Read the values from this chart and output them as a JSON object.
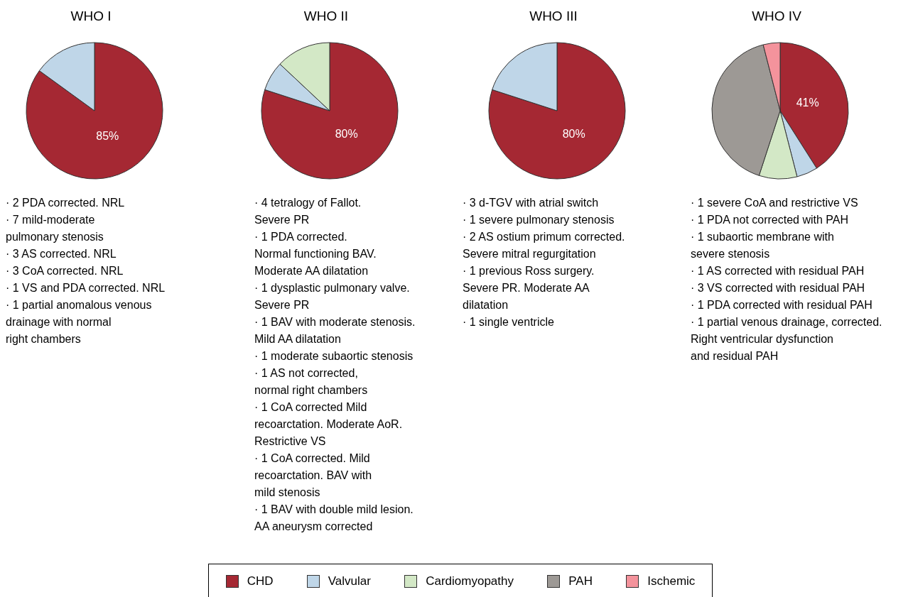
{
  "chart_data": [
    {
      "type": "pie",
      "title": "WHO I",
      "categories": [
        null,
        null
      ],
      "values": [
        85,
        15
      ],
      "colors": [
        "#a52833",
        "#bfd6e8"
      ],
      "value_labels": [
        "85%",
        null
      ],
      "legend": false,
      "annotations": [
        "· 2 PDA corrected. NRL",
        "· 7 mild-moderate",
        "pulmonary stenosis",
        "· 3 AS corrected. NRL",
        "· 3 CoA corrected. NRL",
        "· 1 VS and PDA corrected. NRL",
        "· 1 partial anomalous venous",
        "drainage with normal",
        "right chambers"
      ]
    },
    {
      "type": "pie",
      "title": "WHO II",
      "categories": [
        null,
        null,
        null
      ],
      "values": [
        80,
        7,
        13
      ],
      "colors": [
        "#a52833",
        "#bfd6e8",
        "#d3e8c6"
      ],
      "value_labels": [
        "80%",
        null,
        null
      ],
      "legend": false,
      "annotations": [
        "· 4 tetralogy of Fallot.",
        "Severe PR",
        "· 1 PDA corrected.",
        "Normal functioning BAV.",
        "Moderate AA dilatation",
        "· 1 dysplastic pulmonary valve.",
        "Severe PR",
        "· 1 BAV with moderate stenosis.",
        "Mild AA dilatation",
        "· 1 moderate subaortic stenosis",
        "· 1 AS not corrected,",
        "normal right chambers",
        "· 1 CoA corrected Mild",
        "recoarctation. Moderate AoR.",
        "Restrictive VS",
        "· 1 CoA corrected. Mild",
        "recoarctation. BAV with",
        "mild stenosis",
        "· 1 BAV with double mild lesion.",
        "AA aneurysm corrected"
      ]
    },
    {
      "type": "pie",
      "title": "WHO III",
      "categories": [
        null,
        null
      ],
      "values": [
        80,
        20
      ],
      "colors": [
        "#a52833",
        "#bfd6e8"
      ],
      "value_labels": [
        "80%",
        null
      ],
      "legend": false,
      "annotations": [
        "· 3 d-TGV with atrial switch",
        "· 1 severe pulmonary stenosis",
        "· 2 AS ostium primum corrected.",
        "Severe mitral regurgitation",
        "· 1 previous Ross surgery.",
        "Severe PR. Moderate AA",
        "dilatation",
        "· 1 single ventricle"
      ]
    },
    {
      "type": "pie",
      "title": "WHO IV",
      "categories": [
        "CHD",
        "Valvular",
        "Cardiomyopathy",
        "PAH",
        "Ischemic"
      ],
      "values": [
        41,
        5,
        9,
        41,
        4
      ],
      "colors": [
        "#a52833",
        "#bfd6e8",
        "#d3e8c6",
        "#9d9995",
        "#f4939c"
      ],
      "value_labels": [
        "41%",
        null,
        null,
        null,
        null
      ],
      "legend": "bottom",
      "annotations": [
        "· 1 severe CoA and restrictive VS",
        "· 1 PDA not corrected with PAH",
        "· 1 subaortic membrane with",
        "severe stenosis",
        "· 1 AS corrected with residual PAH",
        "· 3 VS corrected with residual PAH",
        "· 1 PDA corrected with residual PAH",
        "· 1 partial venous drainage, corrected.",
        "Right ventricular dysfunction",
        "and residual PAH"
      ]
    }
  ]
}
